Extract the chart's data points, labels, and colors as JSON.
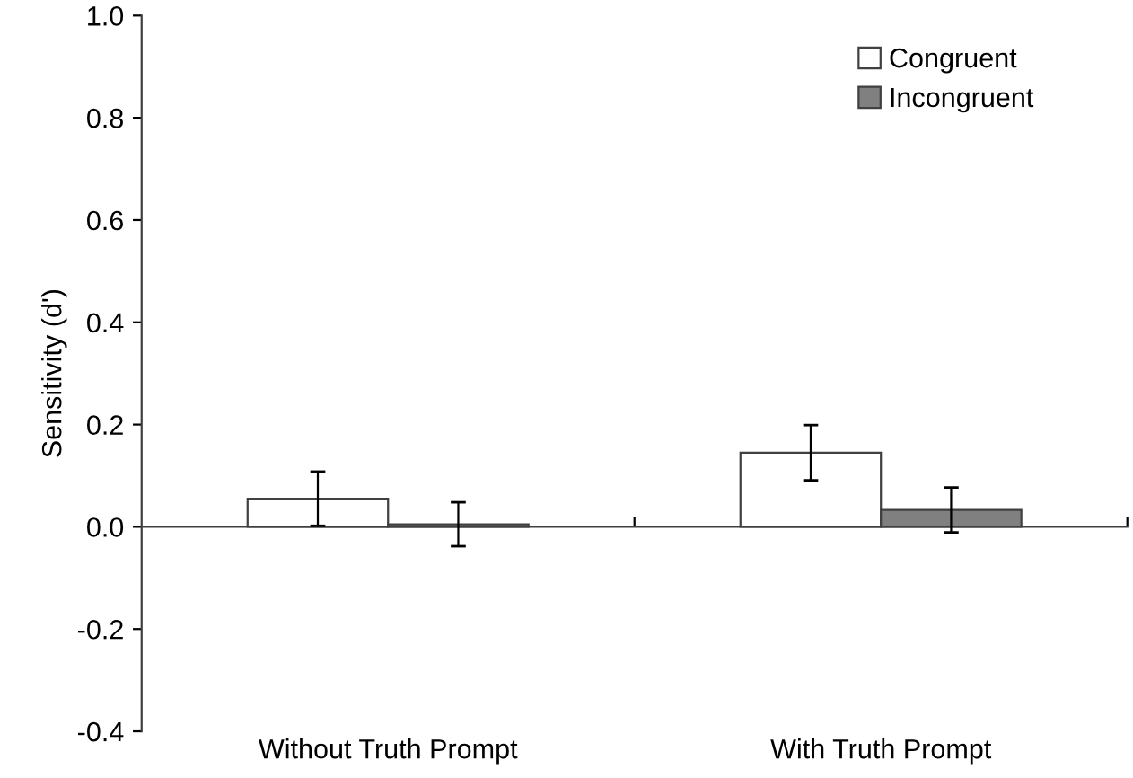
{
  "chart_data": {
    "type": "bar",
    "ylabel": "Sensitivity (d')",
    "categories": [
      "Without Truth Prompt",
      "With Truth Prompt"
    ],
    "series": [
      {
        "name": "Congruent",
        "color": "#ffffff",
        "values": [
          0.055,
          0.145
        ],
        "errors": [
          0.053,
          0.054
        ]
      },
      {
        "name": "Incongruent",
        "color": "#808080",
        "values": [
          0.005,
          0.033
        ],
        "errors": [
          0.043,
          0.044
        ]
      }
    ],
    "ylim": [
      -0.4,
      1.0
    ],
    "yticks": [
      {
        "value": -0.4,
        "label": "-0.4"
      },
      {
        "value": -0.2,
        "label": "-0.2"
      },
      {
        "value": 0.0,
        "label": "0.0"
      },
      {
        "value": 0.2,
        "label": "0.2"
      },
      {
        "value": 0.4,
        "label": "0.4"
      },
      {
        "value": 0.6,
        "label": "0.6"
      },
      {
        "value": 0.8,
        "label": "0.8"
      },
      {
        "value": 1.0,
        "label": "1.0"
      }
    ],
    "legend": "top right"
  }
}
